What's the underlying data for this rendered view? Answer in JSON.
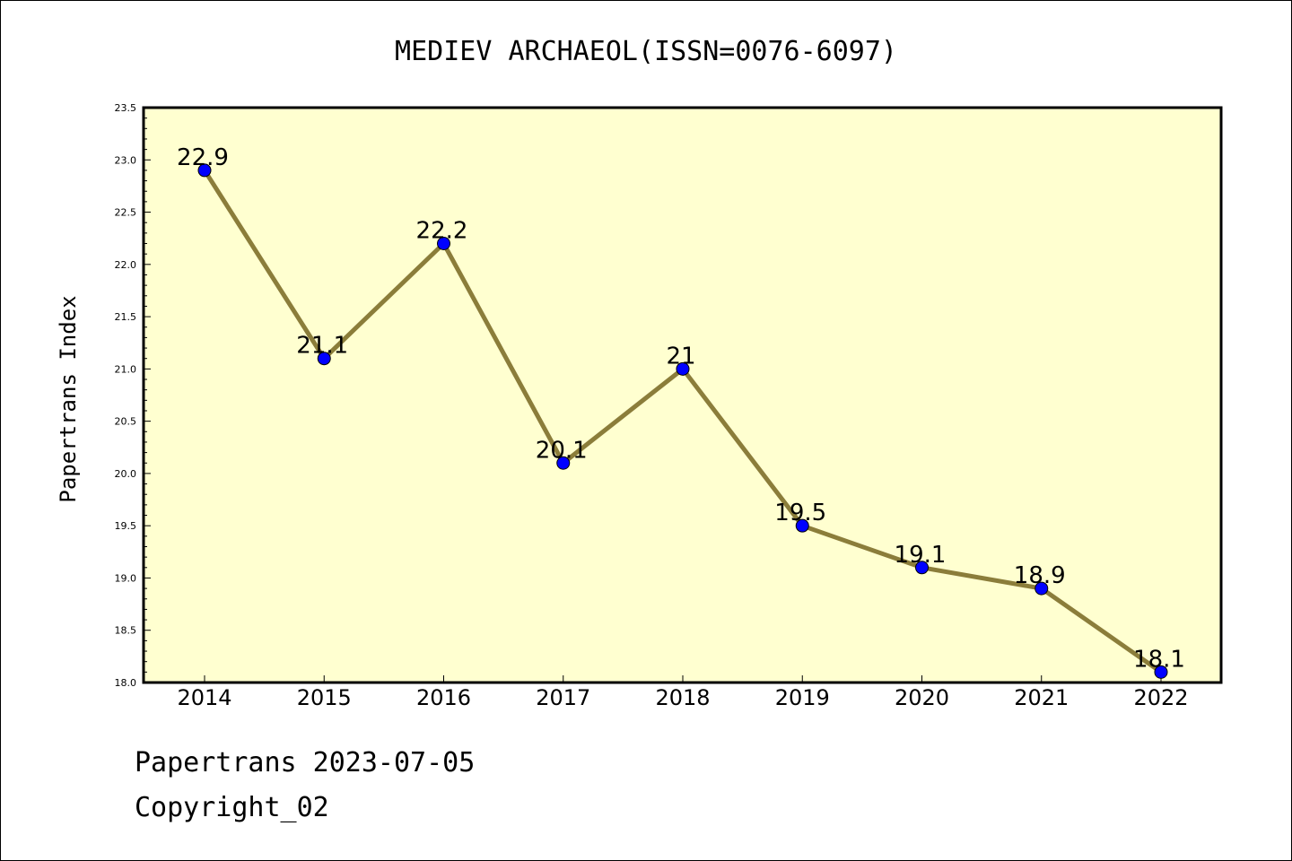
{
  "chart_data": {
    "type": "line",
    "title": "MEDIEV ARCHAEOL(ISSN=0076-6097)",
    "ylabel": "Papertrans Index",
    "xlabel": "",
    "x": [
      "2014",
      "2015",
      "2016",
      "2017",
      "2018",
      "2019",
      "2020",
      "2021",
      "2022"
    ],
    "values": [
      22.9,
      21.1,
      22.2,
      20.1,
      21.0,
      19.5,
      19.1,
      18.9,
      18.1
    ],
    "data_labels": [
      "22.9",
      "21.1",
      "22.2",
      "20.1",
      "21",
      "19.5",
      "19.1",
      "18.9",
      "18.1"
    ],
    "ylim": [
      18.0,
      23.5
    ],
    "yticks": [
      "18.0",
      "18.5",
      "19.0",
      "19.5",
      "20.0",
      "20.5",
      "21.0",
      "21.5",
      "22.0",
      "22.5",
      "23.0",
      "23.5"
    ],
    "grid": false,
    "colors": {
      "plot_background": "#ffffd0",
      "line": "#8b7d3a",
      "marker": "#0000ff"
    }
  },
  "footer": {
    "line1": "Papertrans 2023-07-05",
    "line2": "Copyright_02"
  }
}
